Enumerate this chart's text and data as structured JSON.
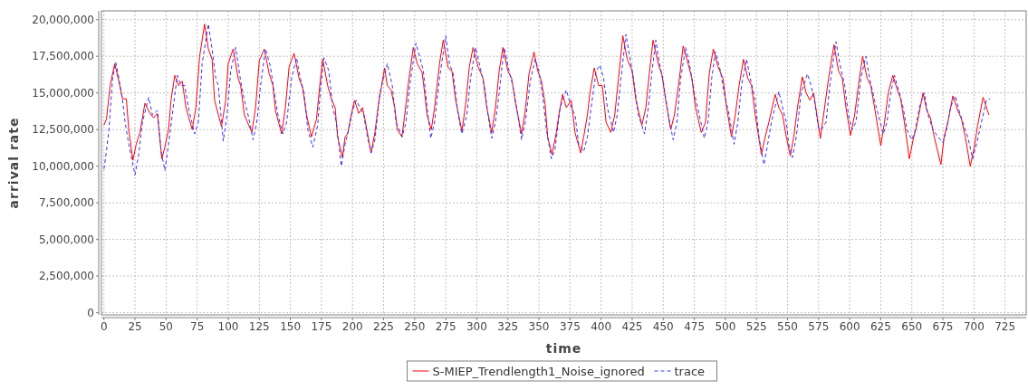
{
  "chart_data": {
    "type": "line",
    "xlabel": "time",
    "ylabel": "arrival rate",
    "xlim": [
      -2,
      742
    ],
    "ylim": [
      -150000,
      20600000
    ],
    "xticks": [
      0,
      25,
      50,
      75,
      100,
      125,
      150,
      175,
      200,
      225,
      250,
      275,
      300,
      325,
      350,
      375,
      400,
      425,
      450,
      475,
      500,
      525,
      550,
      575,
      600,
      625,
      650,
      675,
      700,
      725
    ],
    "yticks": [
      {
        "value": 0,
        "label": "0"
      },
      {
        "value": 2500000,
        "label": "2,500,000"
      },
      {
        "value": 5000000,
        "label": "5,000,000"
      },
      {
        "value": 7500000,
        "label": "7,500,000"
      },
      {
        "value": 10000000,
        "label": "10,000,000"
      },
      {
        "value": 12500000,
        "label": "12,500,000"
      },
      {
        "value": 15000000,
        "label": "15,000,000"
      },
      {
        "value": 17500000,
        "label": "17,500,000"
      },
      {
        "value": 20000000,
        "label": "20,000,000"
      }
    ],
    "grid": true,
    "legend": "bottom",
    "series": [
      {
        "name": "S-MIEP_Trendlength1_Noise_ignored",
        "color": "#ff0000",
        "line_style": "solid",
        "x": [
          0,
          2,
          5,
          8.7,
          12,
          15,
          18,
          20,
          23.3,
          26,
          29,
          33,
          37,
          40,
          43,
          46.6,
          49,
          52,
          54,
          57,
          60,
          63,
          66,
          71,
          74,
          77,
          81,
          84,
          87,
          89,
          94.6,
          98,
          100,
          104,
          108,
          110,
          113,
          119,
          122,
          125,
          129,
          133,
          136,
          138,
          143,
          146,
          149,
          153,
          157,
          160,
          163,
          167,
          171,
          174,
          176,
          180,
          183,
          186,
          188,
          191.9,
          194,
          196,
          199,
          201.6,
          205,
          208,
          210,
          214.9,
          218,
          221,
          225.8,
          228,
          231,
          234,
          236,
          239.7,
          242,
          245,
          248.9,
          252,
          256,
          258,
          260,
          263.4,
          266,
          270,
          273,
          277,
          280,
          283,
          288,
          291,
          294,
          297,
          301,
          305,
          308,
          312,
          315,
          318,
          321,
          325,
          328,
          331,
          336,
          339,
          342,
          346,
          349,
          352,
          355,
          357,
          360.5,
          364,
          366,
          369,
          372,
          376,
          379,
          383.6,
          386,
          389,
          391,
          394.5,
          398,
          401,
          404,
          407.8,
          411,
          414,
          417.5,
          421,
          425,
          428,
          432.8,
          436,
          439,
          441.8,
          446,
          449,
          452,
          456,
          459,
          463,
          466,
          470,
          473,
          476,
          480.6,
          484,
          487,
          490.3,
          494,
          498,
          501,
          504.9,
          508,
          511,
          514.6,
          518,
          521,
          524,
          529,
          532,
          535,
          540,
          543,
          546,
          549,
          552.2,
          555,
          558,
          561.9,
          565,
          568,
          571,
          576.4,
          579,
          583,
          587.4,
          591,
          594,
          597,
          600.7,
          604,
          607,
          610.4,
          614,
          617,
          621,
          625,
          628,
          631,
          634.7,
          638,
          641,
          644,
          648,
          651,
          654,
          659,
          662,
          665,
          668,
          673.4,
          676,
          679,
          683,
          687,
          690,
          693,
          697,
          700,
          703,
          707.3,
          712
        ],
        "values": [
          12800000,
          13200000,
          15500000,
          17000000,
          15800000,
          14600000,
          14600000,
          12500000,
          10400000,
          11500000,
          12300000,
          14300000,
          13600000,
          13300000,
          13600000,
          10500000,
          11300000,
          12500000,
          14500000,
          16200000,
          15500000,
          15800000,
          14000000,
          12500000,
          14000000,
          17500000,
          19700000,
          18000000,
          17300000,
          14500000,
          12700000,
          14500000,
          17000000,
          18000000,
          16000000,
          15500000,
          13500000,
          12300000,
          14000000,
          17200000,
          18000000,
          16300000,
          15500000,
          13800000,
          12200000,
          14000000,
          16800000,
          17700000,
          16000000,
          15300000,
          13500000,
          12000000,
          13200000,
          15800000,
          17300000,
          15500000,
          14600000,
          14000000,
          12000000,
          10600000,
          12000000,
          12200000,
          13500000,
          14500000,
          13600000,
          14000000,
          13200000,
          10900000,
          12300000,
          14300000,
          16700000,
          15500000,
          15200000,
          14000000,
          12500000,
          12000000,
          13500000,
          15700000,
          18100000,
          17000000,
          16400000,
          15000000,
          13500000,
          12500000,
          14000000,
          17000000,
          18600000,
          16700000,
          16500000,
          14500000,
          12400000,
          14200000,
          16800000,
          18100000,
          16800000,
          16000000,
          14000000,
          12300000,
          14000000,
          16500000,
          18100000,
          16500000,
          16000000,
          14400000,
          12200000,
          13800000,
          16300000,
          17800000,
          16500000,
          15800000,
          14200000,
          12000000,
          10800000,
          12300000,
          13500000,
          14900000,
          14000000,
          14500000,
          12300000,
          10900000,
          12000000,
          13500000,
          15000000,
          16700000,
          15500000,
          15500000,
          13000000,
          12300000,
          13500000,
          16000000,
          18900000,
          17300000,
          16500000,
          14500000,
          12800000,
          14000000,
          16500000,
          18600000,
          17000000,
          16200000,
          14500000,
          12500000,
          13500000,
          16000000,
          18200000,
          17000000,
          16000000,
          14000000,
          12300000,
          13000000,
          16300000,
          18000000,
          16800000,
          16000000,
          14000000,
          12000000,
          13500000,
          15500000,
          17300000,
          16000000,
          15500000,
          13500000,
          10800000,
          12000000,
          13000000,
          14900000,
          14000000,
          13500000,
          12000000,
          10700000,
          12000000,
          14000000,
          16100000,
          15000000,
          14500000,
          15000000,
          11900000,
          13500000,
          16000000,
          18300000,
          16500000,
          16000000,
          14000000,
          12100000,
          13500000,
          15500000,
          17500000,
          16000000,
          15500000,
          13500000,
          11400000,
          13000000,
          15000000,
          16200000,
          15300000,
          14600000,
          13000000,
          10500000,
          11800000,
          12800000,
          15000000,
          13800000,
          13300000,
          12000000,
          10100000,
          12000000,
          13000000,
          14800000,
          13800000,
          13200000,
          12000000,
          10000000,
          11200000,
          12800000,
          14700000,
          13500000
        ]
      },
      {
        "name": "trace",
        "color": "#3333ff",
        "line_style": "dashed",
        "x": [
          0,
          2,
          4,
          7,
          9.5,
          12,
          15,
          17,
          20,
          25,
          28,
          31,
          36,
          39,
          43,
          46,
          49,
          52,
          55,
          59,
          62,
          65,
          68,
          73,
          76,
          79,
          84,
          87,
          90,
          92,
          96,
          99,
          102,
          106,
          110,
          113,
          116,
          120,
          123,
          126,
          130,
          134,
          137,
          140,
          144,
          147,
          151,
          155,
          158,
          161,
          164,
          168,
          172,
          174,
          177,
          181,
          184,
          187,
          191,
          194,
          197,
          200,
          203,
          206,
          209,
          212,
          215,
          218,
          222,
          225,
          228,
          232,
          235,
          240,
          243,
          246,
          251,
          254,
          257,
          260,
          263,
          266,
          270,
          275,
          278,
          281,
          285,
          288,
          292,
          295,
          299,
          302,
          306,
          309,
          312,
          315,
          318,
          322,
          326,
          329,
          332,
          336,
          339,
          343,
          347,
          350,
          353,
          356,
          360,
          363,
          367,
          372,
          376,
          379,
          382,
          386,
          389,
          392,
          396,
          399,
          402,
          405,
          410,
          413,
          416,
          420,
          423,
          426,
          430,
          435,
          438,
          441,
          444,
          447,
          450,
          454,
          458,
          461,
          464,
          468,
          471,
          475,
          479,
          483,
          486,
          489,
          492,
          496,
          499,
          503,
          507,
          510,
          513,
          517,
          520,
          524,
          527,
          531,
          534,
          537,
          543,
          546,
          549,
          551,
          554,
          557,
          561,
          566,
          569,
          572,
          575,
          578,
          581,
          584,
          589,
          592,
          596,
          599,
          602,
          605,
          609,
          613,
          616,
          620,
          623,
          627,
          630,
          633,
          636,
          640,
          643,
          646,
          650,
          653,
          656,
          660,
          663,
          667,
          671,
          675,
          678,
          681,
          685,
          688,
          691,
          695,
          699,
          702,
          706,
          710,
          713
        ],
        "values": [
          9800000,
          11000000,
          12500000,
          16000000,
          17100000,
          16000000,
          14500000,
          13000000,
          11500000,
          9400000,
          10800000,
          13000000,
          14700000,
          13500000,
          13800000,
          11000000,
          9700000,
          11500000,
          13500000,
          16200000,
          15500000,
          15500000,
          14000000,
          12200000,
          13000000,
          17000000,
          19700000,
          18000000,
          16000000,
          15500000,
          11700000,
          13500000,
          16500000,
          18100000,
          15800000,
          14500000,
          13500000,
          11800000,
          13000000,
          15500000,
          18000000,
          16800000,
          15000000,
          13500000,
          12200000,
          13000000,
          16000000,
          17400000,
          16000000,
          15000000,
          12500000,
          11300000,
          12800000,
          15000000,
          17400000,
          16500000,
          14000000,
          13000000,
          10000000,
          11500000,
          12500000,
          13800000,
          14500000,
          14000000,
          13500000,
          12000000,
          10900000,
          11800000,
          15000000,
          16000000,
          17000000,
          15500000,
          13000000,
          12000000,
          13000000,
          15500000,
          18400000,
          17500000,
          16500000,
          14000000,
          11900000,
          13000000,
          16000000,
          18900000,
          17000000,
          16300000,
          13500000,
          12200000,
          13500000,
          16000000,
          18100000,
          17000000,
          15500000,
          13500000,
          11900000,
          13000000,
          15000000,
          18100000,
          16500000,
          15500000,
          14000000,
          11800000,
          13000000,
          15800000,
          17300000,
          16500000,
          14800000,
          12500000,
          10500000,
          11200000,
          14000000,
          15200000,
          14000000,
          13500000,
          11500000,
          11000000,
          12000000,
          14000000,
          16500000,
          16900000,
          16000000,
          14000000,
          12300000,
          13500000,
          16000000,
          19000000,
          17500000,
          16000000,
          13500000,
          12200000,
          14000000,
          16500000,
          18600000,
          17000000,
          15800000,
          13500000,
          11800000,
          13000000,
          16000000,
          18100000,
          17000000,
          15000000,
          13500000,
          11900000,
          13000000,
          16000000,
          17800000,
          16500000,
          15000000,
          13500000,
          11500000,
          13000000,
          15500000,
          17300000,
          16000000,
          14500000,
          12000000,
          10100000,
          11500000,
          13000000,
          15100000,
          14000000,
          13000000,
          11500000,
          10600000,
          12000000,
          15000000,
          16300000,
          15500000,
          14300000,
          12500000,
          12600000,
          13000000,
          15500000,
          18500000,
          17000000,
          15500000,
          13500000,
          12500000,
          13000000,
          16000000,
          17500000,
          16000000,
          14500000,
          13500000,
          12200000,
          13000000,
          15000000,
          16200000,
          15000000,
          14000000,
          12500000,
          11800000,
          12500000,
          14000000,
          15000000,
          13500000,
          12500000,
          12000000,
          11600000,
          12500000,
          14000000,
          14800000,
          13800000,
          13000000,
          12000000,
          10500000,
          11500000,
          13000000,
          14500000,
          14600000
        ]
      }
    ]
  }
}
